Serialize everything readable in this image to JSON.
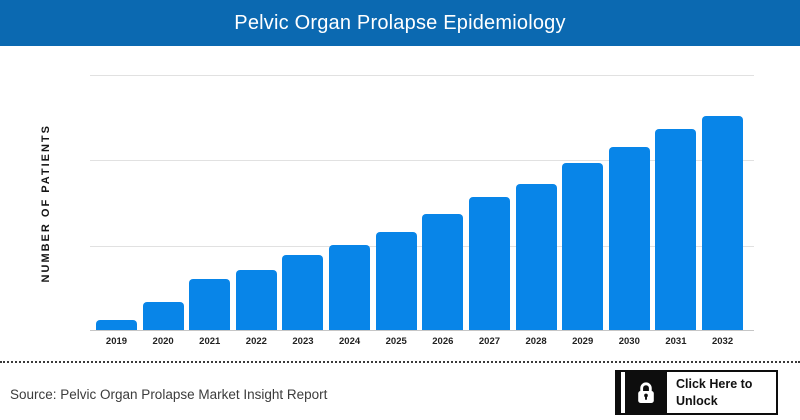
{
  "header": {
    "title": "Pelvic Organ Prolapse Epidemiology"
  },
  "colors": {
    "banner_blue": "#0b69b1",
    "bar_blue": "#0885e8",
    "gridline_gray": "#e1e1e1",
    "axis_gray": "#c6c6c6",
    "button_black": "#0d0d0d"
  },
  "chart_data": {
    "type": "bar",
    "title": "Pelvic Organ Prolapse Epidemiology",
    "xlabel": "",
    "ylabel": "NUMBER OF PATIENTS",
    "categories": [
      "2019",
      "2020",
      "2021",
      "2022",
      "2023",
      "2024",
      "2025",
      "2026",
      "2027",
      "2028",
      "2029",
      "2030",
      "2031",
      "2032"
    ],
    "values": [
      0.12,
      0.33,
      0.6,
      0.7,
      0.88,
      1.0,
      1.15,
      1.36,
      1.56,
      1.71,
      1.96,
      2.14,
      2.36,
      2.51
    ],
    "value_note": "y-axis tick labels are hidden in the chart; values are relative units where one gridline interval = 1",
    "ylim": [
      0,
      3
    ],
    "grid": "3 horizontal gridlines, evenly spaced, no y tick labels",
    "legend": "none",
    "bar_color": "#0885e8"
  },
  "footer": {
    "source_text": "Source: Pelvic Organ Prolapse Market Insight Report",
    "unlock_button": {
      "label_line1": "Click Here to",
      "label_line2": "Unlock",
      "icon": "lock-icon"
    }
  }
}
